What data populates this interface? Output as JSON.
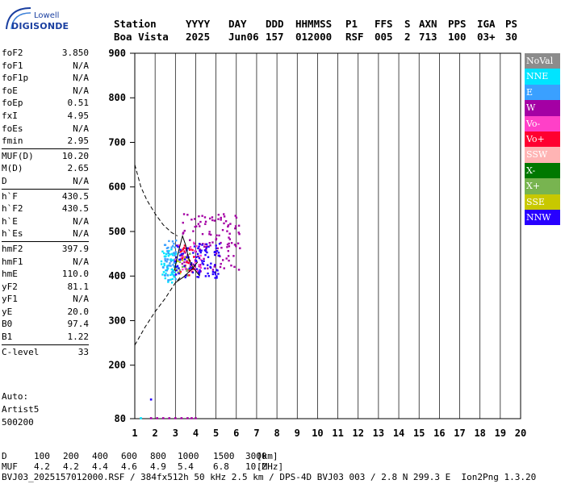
{
  "logo": {
    "line1": "Lowell",
    "line2": "DIGISONDE"
  },
  "header": {
    "row1": [
      "Station",
      "YYYY",
      "DAY",
      "DDD",
      "HHMMSS",
      "P1",
      "FFS",
      "S",
      "AXN",
      "PPS",
      "IGA",
      "PS"
    ],
    "row2": [
      "Boa Vista",
      "2025",
      "Jun06",
      "157",
      "012000",
      "RSF",
      "005",
      "2",
      "713",
      "100",
      "03+",
      "30"
    ]
  },
  "parameters": [
    {
      "label": "foF2",
      "value": "3.850"
    },
    {
      "label": "foF1",
      "value": "N/A"
    },
    {
      "label": "foF1p",
      "value": "N/A"
    },
    {
      "label": "foE",
      "value": "N/A"
    },
    {
      "label": "foEp",
      "value": "0.51"
    },
    {
      "label": "fxI",
      "value": "4.95"
    },
    {
      "label": "foEs",
      "value": "N/A"
    },
    {
      "label": "fmin",
      "value": "2.95",
      "sep_after": true
    },
    {
      "label": "MUF(D)",
      "value": "10.20"
    },
    {
      "label": "M(D)",
      "value": "2.65"
    },
    {
      "label": "D",
      "value": "N/A",
      "sep_after": true
    },
    {
      "label": "h`F",
      "value": "430.5"
    },
    {
      "label": "h`F2",
      "value": "430.5"
    },
    {
      "label": "h`E",
      "value": "N/A"
    },
    {
      "label": "h`Es",
      "value": "N/A",
      "sep_after": true
    },
    {
      "label": "hmF2",
      "value": "397.9"
    },
    {
      "label": "hmF1",
      "value": "N/A"
    },
    {
      "label": "hmE",
      "value": "110.0"
    },
    {
      "label": "yF2",
      "value": "81.1"
    },
    {
      "label": "yF1",
      "value": "N/A"
    },
    {
      "label": "yE",
      "value": "20.0"
    },
    {
      "label": "B0",
      "value": "97.4"
    },
    {
      "label": "B1",
      "value": "1.22",
      "sep_after": true
    },
    {
      "label": "C-level",
      "value": "33"
    }
  ],
  "autoscaling": {
    "line1": "Auto:",
    "line2": "Artist5",
    "line3": "500200"
  },
  "legend": [
    {
      "label": "NoVal",
      "color": "#8c8c8c"
    },
    {
      "label": "NNE",
      "color": "#00e4ff"
    },
    {
      "label": "E",
      "color": "#3aa0ff"
    },
    {
      "label": "W",
      "color": "#a400a4"
    },
    {
      "label": "Vo-",
      "color": "#ff40c8"
    },
    {
      "label": "Vo+",
      "color": "#ff0030"
    },
    {
      "label": "SSW",
      "color": "#ffb4b4"
    },
    {
      "label": "X-",
      "color": "#007800"
    },
    {
      "label": "X+",
      "color": "#78b450"
    },
    {
      "label": "SSE",
      "color": "#c8c800"
    },
    {
      "label": "NNW",
      "color": "#2800ff"
    }
  ],
  "muf_table": {
    "d_label": "D",
    "d_values": [
      "100",
      "200",
      "400",
      "600",
      "800",
      "1000",
      "1500",
      "3000"
    ],
    "d_unit": "[km]",
    "muf_label": "MUF",
    "muf_values": [
      "4.2",
      "4.2",
      "4.4",
      "4.6",
      "4.9",
      "5.4",
      "6.8",
      "10.2"
    ],
    "muf_unit": "[MHz]"
  },
  "footer": "BVJ03_2025157012000.RSF / 384fx512h 50 kHz 2.5 km / DPS-4D BVJ03 003 / 2.8 N 299.3 E  Ion2Png 1.3.20",
  "chart_data": {
    "type": "scatter",
    "xlim": [
      1,
      20
    ],
    "ylim": [
      80,
      900
    ],
    "xticks": [
      1,
      2,
      3,
      4,
      5,
      6,
      7,
      8,
      9,
      10,
      11,
      12,
      13,
      14,
      15,
      16,
      17,
      18,
      19,
      20
    ],
    "yticks": [
      80,
      200,
      300,
      400,
      500,
      600,
      700,
      800,
      900
    ],
    "grid": "vertical",
    "legend_position": "right",
    "series": [
      {
        "name": "NNE",
        "color": "#00e4ff",
        "x_range": [
          2.3,
          3.1
        ],
        "y_range": [
          385,
          460
        ],
        "density": 55
      },
      {
        "name": "E",
        "color": "#3aa0ff",
        "x_range": [
          2.4,
          3.2
        ],
        "y_range": [
          390,
          480
        ],
        "density": 45
      },
      {
        "name": "W",
        "color": "#a400a4",
        "x_range": [
          3.3,
          6.2
        ],
        "y_range": [
          410,
          540
        ],
        "density": 120
      },
      {
        "name": "Vo-",
        "color": "#ff40c8",
        "x_range": [
          3.0,
          4.3
        ],
        "y_range": [
          410,
          480
        ],
        "density": 30
      },
      {
        "name": "Vo+",
        "color": "#ff0030",
        "x_range": [
          3.2,
          4.0
        ],
        "y_range": [
          400,
          470
        ],
        "density": 25
      },
      {
        "name": "X+",
        "color": "#78b450",
        "x_range": [
          3.0,
          3.8
        ],
        "y_range": [
          400,
          450
        ],
        "density": 12
      },
      {
        "name": "SSE",
        "color": "#c8c800",
        "x_range": [
          3.0,
          3.7
        ],
        "y_range": [
          400,
          450
        ],
        "density": 8
      },
      {
        "name": "NNW",
        "color": "#2800ff",
        "x_range": [
          3.0,
          5.2
        ],
        "y_range": [
          395,
          475
        ],
        "density": 95
      }
    ],
    "baseline_points": [
      {
        "x": 1.3,
        "y": 81,
        "color": "#00e4ff"
      },
      {
        "x": 1.8,
        "y": 81,
        "color": "#a400a4"
      },
      {
        "x": 2.1,
        "y": 81,
        "color": "#a400a4"
      },
      {
        "x": 2.4,
        "y": 81,
        "color": "#a400a4"
      },
      {
        "x": 2.7,
        "y": 81,
        "color": "#a400a4"
      },
      {
        "x": 3.0,
        "y": 81,
        "color": "#a400a4"
      },
      {
        "x": 3.3,
        "y": 81,
        "color": "#a400a4"
      },
      {
        "x": 3.6,
        "y": 81,
        "color": "#a400a4"
      },
      {
        "x": 3.8,
        "y": 81,
        "color": "#a400a4"
      },
      {
        "x": 4.0,
        "y": 81,
        "color": "#a400a4"
      },
      {
        "x": 1.8,
        "y": 123,
        "color": "#2800ff"
      }
    ],
    "dashed_curves": [
      [
        [
          1.0,
          650
        ],
        [
          1.3,
          600
        ],
        [
          1.6,
          570
        ],
        [
          2.0,
          540
        ],
        [
          2.4,
          515
        ],
        [
          2.8,
          498
        ],
        [
          3.1,
          490
        ]
      ],
      [
        [
          1.0,
          245
        ],
        [
          1.5,
          285
        ],
        [
          2.0,
          320
        ],
        [
          2.5,
          350
        ],
        [
          3.0,
          385
        ],
        [
          3.3,
          400
        ]
      ]
    ],
    "solid_curves": [
      [
        [
          3.0,
          385
        ],
        [
          3.4,
          398
        ],
        [
          3.8,
          415
        ],
        [
          4.1,
          432
        ]
      ],
      [
        [
          2.95,
          412
        ],
        [
          3.15,
          455
        ],
        [
          3.35,
          490
        ],
        [
          3.5,
          470
        ],
        [
          3.65,
          440
        ],
        [
          3.85,
          420
        ],
        [
          4.2,
          400
        ]
      ]
    ]
  }
}
